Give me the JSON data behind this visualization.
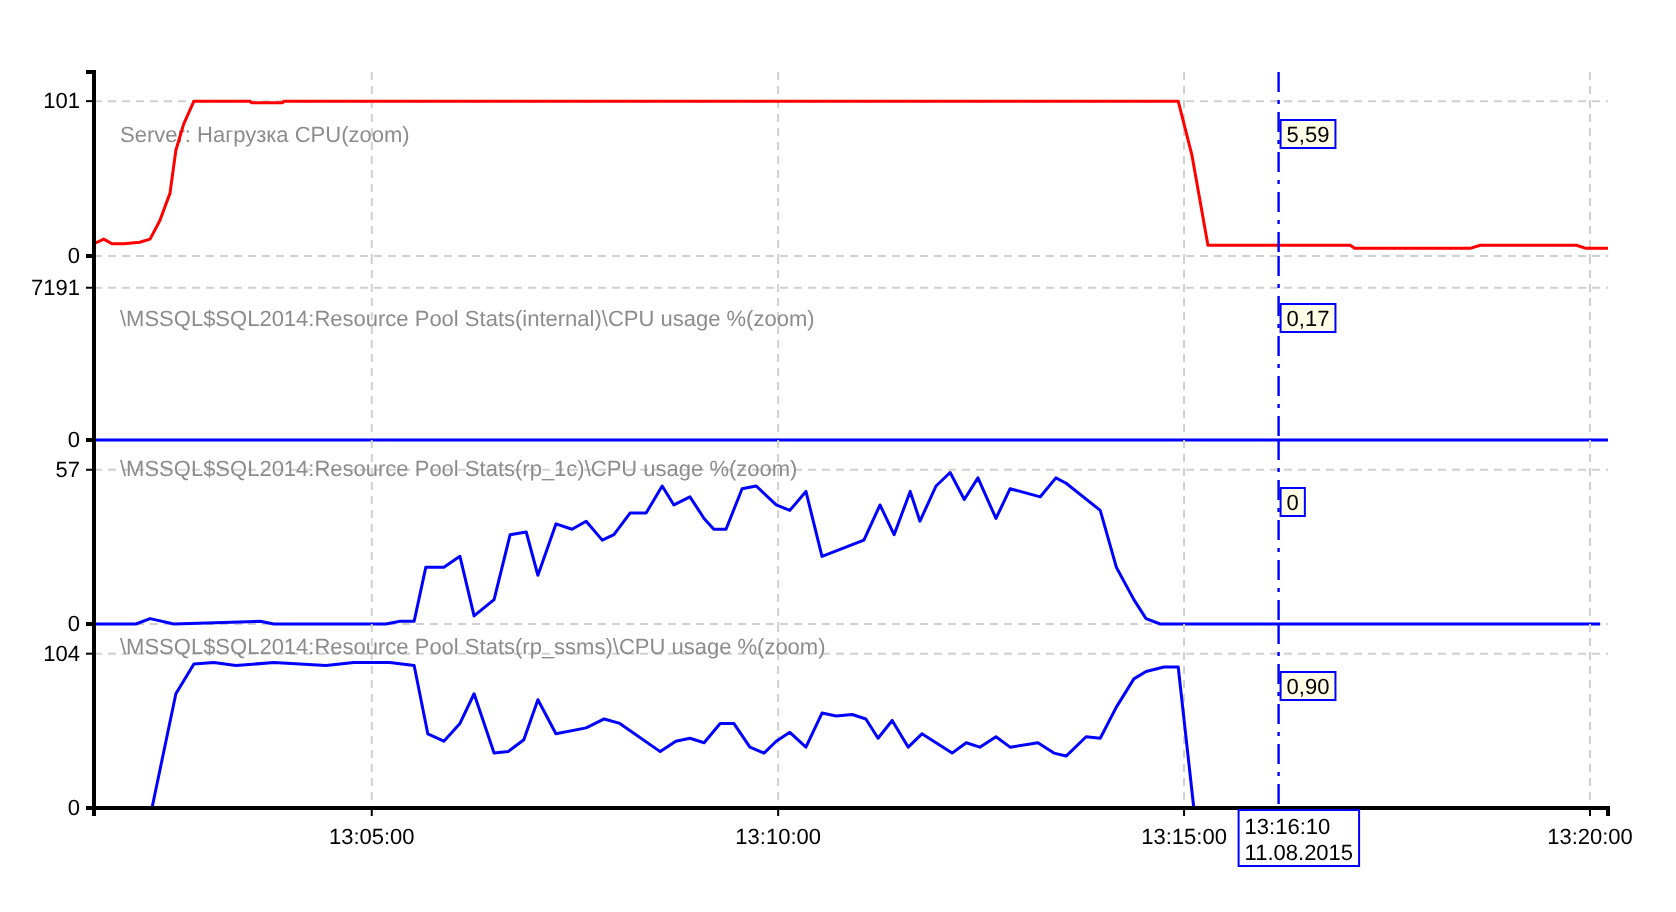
{
  "chart_data": [
    {
      "type": "line",
      "title": "Server: Нагрузка CPU(zoom)",
      "xlim": [
        13.0263,
        13.337
      ],
      "xticks": [
        {
          "value": 13.0833,
          "label": null
        },
        {
          "value": 13.1667,
          "label": null
        },
        {
          "value": 13.25,
          "label": null
        },
        {
          "value": 13.3333,
          "label": null
        }
      ],
      "ylim": [
        0,
        120
      ],
      "yticks": [
        0,
        101
      ],
      "grid": true,
      "tick_labels": "y",
      "ref_lines": [
        {
          "axis": "x",
          "value": 13.2694,
          "color": "#0000ff",
          "line_style": "dashed"
        }
      ],
      "annotations": [
        "5,59"
      ],
      "series": [
        {
          "color": "#ff0000",
          "x": [
            13.0263,
            13.0283,
            13.03,
            13.0324,
            13.0357,
            13.0378,
            13.0398,
            13.0419,
            13.0431,
            13.0447,
            13.0468,
            13.0583,
            13.0586,
            13.065,
            13.0653,
            13.2488,
            13.2516,
            13.2549,
            13.2615,
            13.2841,
            13.285,
            13.3087,
            13.3108,
            13.3305,
            13.3325,
            13.337
          ],
          "values": [
            8,
            11,
            8,
            8,
            9,
            11,
            23,
            41,
            69,
            86,
            101,
            101,
            100,
            100,
            101,
            101,
            66,
            7,
            7,
            7,
            5,
            5,
            7,
            7,
            5,
            5
          ]
        }
      ]
    },
    {
      "type": "line",
      "title": "\\MSSQL$SQL2014:Resource Pool Stats(internal)\\CPU usage %(zoom)",
      "xlim": [
        13.0263,
        13.337
      ],
      "xticks": [
        {
          "value": 13.0833,
          "label": null
        },
        {
          "value": 13.1667,
          "label": null
        },
        {
          "value": 13.25,
          "label": null
        },
        {
          "value": 13.3333,
          "label": null
        }
      ],
      "ylim": [
        0,
        8690
      ],
      "yticks": [
        0,
        7191
      ],
      "grid": true,
      "tick_labels": "y",
      "ref_lines": [
        {
          "axis": "x",
          "value": 13.2694,
          "color": "#0000ff",
          "line_style": "dashed"
        }
      ],
      "annotations": [
        "0,17"
      ],
      "series": [
        {
          "color": "#0000ff",
          "x": [
            13.0263,
            13.337
          ],
          "values": [
            0,
            0
          ]
        }
      ]
    },
    {
      "type": "line",
      "title": "\\MSSQL$SQL2014:Resource Pool Stats(rp_1c)\\CPU usage %(zoom)",
      "xlim": [
        13.0263,
        13.337
      ],
      "xticks": [
        {
          "value": 13.0833,
          "label": null
        },
        {
          "value": 13.1667,
          "label": null
        },
        {
          "value": 13.25,
          "label": null
        },
        {
          "value": 13.3333,
          "label": null
        }
      ],
      "ylim": [
        0,
        68
      ],
      "yticks": [
        0,
        57
      ],
      "grid": true,
      "tick_labels": "y",
      "ref_lines": [
        {
          "axis": "x",
          "value": 13.2694,
          "color": "#0000ff",
          "line_style": "dashed"
        }
      ],
      "annotations": [
        "0"
      ],
      "series": [
        {
          "color": "#0000ff",
          "x": [
            13.0267,
            13.0349,
            13.0378,
            13.0427,
            13.0604,
            13.0632,
            13.0862,
            13.0891,
            13.092,
            13.0944,
            13.0981,
            13.1014,
            13.1043,
            13.1084,
            13.1117,
            13.115,
            13.1174,
            13.1211,
            13.1244,
            13.1273,
            13.1306,
            13.133,
            13.1363,
            13.1396,
            13.1429,
            13.1453,
            13.1486,
            13.1515,
            13.1535,
            13.156,
            13.1593,
            13.1622,
            13.1663,
            13.1691,
            13.1724,
            13.1757,
            13.1843,
            13.1876,
            13.1905,
            13.1938,
            13.1958,
            13.1991,
            13.202,
            13.2049,
            13.2077,
            13.2114,
            13.2143,
            13.2205,
            13.2237,
            13.2258,
            13.2328,
            13.2361,
            13.2397,
            13.2422,
            13.2451,
            13.3354
          ],
          "values": [
            0,
            0,
            2,
            0,
            1,
            0,
            0,
            1,
            1,
            21,
            21,
            25,
            3,
            9,
            33,
            34,
            18,
            37,
            35,
            38,
            31,
            33,
            41,
            41,
            51,
            44,
            47,
            39,
            35,
            35,
            50,
            51,
            44,
            42,
            49,
            25,
            31,
            44,
            33,
            49,
            38,
            51,
            56,
            46,
            54,
            39,
            50,
            47,
            54,
            52,
            42,
            21,
            9,
            2,
            0,
            0
          ]
        }
      ]
    },
    {
      "type": "line",
      "title": "\\MSSQL$SQL2014:Resource Pool Stats(rp_ssms)\\CPU usage %(zoom)",
      "xlim": [
        13.0263,
        13.337
      ],
      "xticks": [
        {
          "value": 13.0833,
          "label": "13:05:00"
        },
        {
          "value": 13.1667,
          "label": "13:10:00"
        },
        {
          "value": 13.25,
          "label": "13:15:00"
        },
        {
          "value": 13.3333,
          "label": "13:20:00"
        }
      ],
      "ylim": [
        0,
        124
      ],
      "yticks": [
        0,
        104
      ],
      "grid": true,
      "ref_lines": [
        {
          "axis": "x",
          "value": 13.2694,
          "color": "#0000ff",
          "line_style": "dashed",
          "label": "13:16:10\n11.08.2015"
        }
      ],
      "annotations": [
        "0,90"
      ],
      "series": [
        {
          "color": "#0000ff",
          "x": [
            13.0382,
            13.0431,
            13.0468,
            13.0509,
            13.0554,
            13.0632,
            13.0739,
            13.0796,
            13.087,
            13.092,
            13.0948,
            13.0981,
            13.1014,
            13.1043,
            13.1084,
            13.1113,
            13.1145,
            13.1174,
            13.1211,
            13.1273,
            13.131,
            13.1342,
            13.1425,
            13.1457,
            13.1486,
            13.1515,
            13.1548,
            13.1576,
            13.1609,
            13.1638,
            13.1663,
            13.1691,
            13.1724,
            13.1757,
            13.1786,
            13.1819,
            13.1847,
            13.1872,
            13.1901,
            13.1934,
            13.1962,
            13.1991,
            13.2024,
            13.2053,
            13.2081,
            13.2114,
            13.2143,
            13.22,
            13.2233,
            13.2258,
            13.2299,
            13.2328,
            13.2361,
            13.2397,
            13.2422,
            13.2459,
            13.2488,
            13.252,
            13.3354
          ],
          "values": [
            0,
            77,
            97,
            98,
            96,
            98,
            96,
            98,
            98,
            96,
            50,
            45,
            57,
            77,
            37,
            38,
            46,
            73,
            50,
            54,
            60,
            57,
            38,
            45,
            47,
            44,
            57,
            57,
            41,
            37,
            45,
            51,
            41,
            64,
            62,
            63,
            60,
            47,
            59,
            41,
            50,
            44,
            37,
            44,
            41,
            48,
            41,
            44,
            37,
            35,
            48,
            47,
            68,
            87,
            92,
            95,
            95,
            0,
            0
          ]
        }
      ]
    }
  ]
}
